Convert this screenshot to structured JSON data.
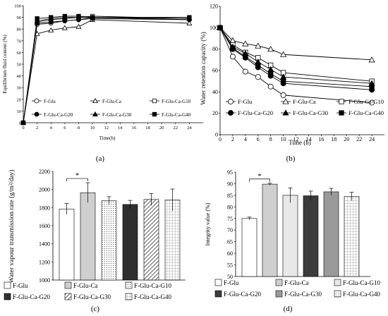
{
  "chart_data": [
    {
      "type": "line",
      "panel": "(a)",
      "xlabel": "Time(h)",
      "ylabel": "Equilibrium fluid content (%)",
      "xlim": [
        0,
        26
      ],
      "ylim": [
        0,
        100
      ],
      "xticks": [
        0,
        2,
        4,
        6,
        8,
        10,
        12,
        14,
        16,
        18,
        20,
        22,
        24
      ],
      "yticks": [
        0,
        10,
        20,
        30,
        40,
        50,
        60,
        70,
        80,
        90,
        100
      ],
      "ytick_labels": [
        "0",
        "10",
        "20",
        "30",
        "40",
        "50",
        "60",
        "70",
        "80",
        "90",
        "100"
      ],
      "x": [
        0,
        2,
        4,
        6,
        8,
        10,
        24
      ],
      "series": [
        {
          "name": "F-Glu",
          "marker": "open-circle",
          "values": [
            0,
            84,
            85,
            87,
            88,
            90,
            88
          ]
        },
        {
          "name": "F-Glu-Ca",
          "marker": "open-triangle",
          "values": [
            0,
            76,
            79,
            81,
            82,
            88,
            85
          ]
        },
        {
          "name": "F-Glu-Ca-G10",
          "marker": "open-square",
          "values": [
            0,
            86,
            88,
            89,
            90,
            91,
            89
          ]
        },
        {
          "name": "F-Glu-Ca-G20",
          "marker": "filled-circle",
          "values": [
            0,
            85,
            86,
            87,
            88,
            89,
            88
          ]
        },
        {
          "name": "F-Glu-Ca-G30",
          "marker": "filled-triangle",
          "values": [
            0,
            87,
            89,
            90,
            90,
            90,
            89
          ]
        },
        {
          "name": "F-Glu-Ca-G40",
          "marker": "filled-square",
          "values": [
            0,
            89,
            90,
            91,
            91,
            90,
            90
          ]
        }
      ],
      "legend": {
        "rows": [
          [
            "F-Glu",
            "F-Glu-Ca",
            "F-Glu-Ca-G10"
          ],
          [
            "F-Glu-Ca-G20",
            "F-Glu-Ca-G30",
            "F-Glu-Ca-G40"
          ]
        ],
        "placement": "bottom-inside"
      }
    },
    {
      "type": "line",
      "panel": "(b)",
      "xlabel": "Time (h)",
      "ylabel": "Water retention capacity (%)",
      "xlim": [
        0,
        26
      ],
      "ylim": [
        0,
        120
      ],
      "xticks": [
        0,
        2,
        4,
        6,
        8,
        10,
        12,
        14,
        16,
        18,
        20,
        22,
        24
      ],
      "yticks": [
        0,
        20,
        40,
        60,
        80,
        100,
        120
      ],
      "ytick_labels": [
        "0",
        "20",
        "40",
        "60",
        "80",
        "100",
        "120"
      ],
      "x": [
        0,
        2,
        4,
        6,
        8,
        10,
        24
      ],
      "series": [
        {
          "name": "F-Glu",
          "marker": "open-circle",
          "values": [
            100,
            73,
            59,
            54,
            45,
            37,
            30
          ]
        },
        {
          "name": "F-Glu-Ca",
          "marker": "open-triangle",
          "values": [
            100,
            88,
            85,
            83,
            80,
            75,
            70
          ]
        },
        {
          "name": "F-Glu-Ca-G10",
          "marker": "open-square",
          "values": [
            100,
            84,
            77,
            72,
            65,
            58,
            50
          ]
        },
        {
          "name": "F-Glu-Ca-G20",
          "marker": "filled-circle",
          "values": [
            100,
            80,
            72,
            63,
            55,
            48,
            42
          ]
        },
        {
          "name": "F-Glu-Ca-G30",
          "marker": "filled-triangle",
          "values": [
            100,
            82,
            76,
            68,
            61,
            54,
            48
          ]
        },
        {
          "name": "F-Glu-Ca-G40",
          "marker": "filled-square",
          "values": [
            100,
            81,
            73,
            65,
            57,
            50,
            45
          ]
        }
      ],
      "legend": {
        "rows": [
          [
            "F-Glu",
            "F-Glu-Ca",
            "F-Glu-Ca-G10"
          ],
          [
            "F-Glu-Ca-G20",
            "F-Glu-Ca-G30",
            "F-Glu-Ca-G40"
          ]
        ],
        "placement": "bottom-inside"
      }
    },
    {
      "type": "bar",
      "panel": "(c)",
      "xlabel": "",
      "ylabel": "Water vapour transmission rate (g/m²/day)",
      "ylim": [
        1000,
        2200
      ],
      "yticks": [
        1000,
        1200,
        1400,
        1600,
        1800,
        2000,
        2200
      ],
      "ytick_labels": [
        "1000",
        "1200",
        "1400",
        "1600",
        "1800",
        "2000",
        "2200"
      ],
      "categories": [
        "F-Glu",
        "F-Glu-Ca",
        "F-Glu-Ca-G10",
        "F-Glu-Ca-G20",
        "F-Glu-Ca-G30",
        "F-Glu-Ca-G40"
      ],
      "values": [
        1785,
        1965,
        1875,
        1835,
        1890,
        1885
      ],
      "errors": [
        60,
        110,
        45,
        45,
        65,
        120
      ],
      "patterns": [
        "white",
        "lightgray",
        "dots",
        "black",
        "hatch",
        "grid"
      ],
      "annotation": "*",
      "legend": {
        "rows": [
          [
            "F-Glu",
            "F-Glu-Ca",
            "F-Glu-Ca-G10"
          ],
          [
            "F-Glu-Ca-G20",
            "F-Glu-Ca-G30",
            "F-Glu-Ca-G40"
          ]
        ],
        "placement": "bottom"
      }
    },
    {
      "type": "bar",
      "panel": "(d)",
      "xlabel": "",
      "ylabel": "Integrity value (%)",
      "ylim": [
        50,
        95
      ],
      "yticks": [
        50,
        55,
        60,
        65,
        70,
        75,
        80,
        85,
        90,
        95
      ],
      "ytick_labels": [
        "50",
        "55",
        "60",
        "65",
        "70",
        "75",
        "80",
        "85",
        "90",
        "95"
      ],
      "categories": [
        "F-Glu",
        "F-Glu-Ca",
        "F-Glu-Ca-G10",
        "F-Glu-Ca-G20",
        "F-Glu-Ca-G30",
        "F-Glu-Ca-G40"
      ],
      "values": [
        75,
        89.8,
        85,
        84.8,
        86.5,
        84.5
      ],
      "errors": [
        0.6,
        0.4,
        3.2,
        2,
        1.5,
        1.8
      ],
      "patterns": [
        "white",
        "lightgray",
        "verylightgray",
        "darkgray",
        "gray",
        "grid"
      ],
      "annotation": "*",
      "legend": {
        "rows": [
          [
            "F-Glu",
            "F-Glu-Ca",
            "F-Glu-Ca-G10"
          ],
          [
            "F-Glu-Ca-G20",
            "F-Glu-Ca-G30",
            "F-Glu-Ca-G40"
          ]
        ],
        "placement": "bottom"
      }
    }
  ]
}
